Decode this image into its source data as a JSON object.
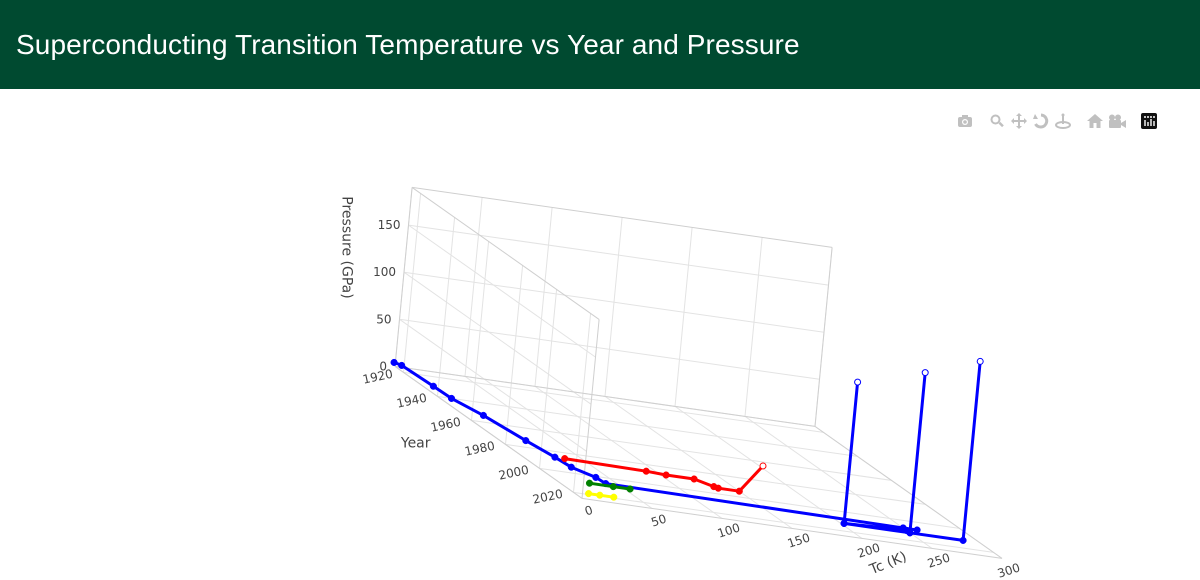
{
  "header": {
    "title": "Superconducting Transition Temperature vs Year and Pressure"
  },
  "modebar": {
    "icons": [
      "camera-icon",
      "zoom-icon",
      "pan-icon",
      "orbit-rotation-icon",
      "turntable-rotation-icon",
      "reset-camera-icon",
      "last-save-camera-icon",
      "plotly-logo-icon"
    ]
  },
  "colors": {
    "header_bg": "#004a30",
    "blue": "#0000ff",
    "red": "#ff0000",
    "green": "#008000",
    "yellow": "#ffff00"
  },
  "chart_data": {
    "type": "scatter3d-lines",
    "title": "",
    "axes": {
      "x": {
        "title": "Tc (K)",
        "range": [
          0,
          300
        ],
        "ticks": [
          "0",
          "50",
          "100",
          "150",
          "200",
          "250",
          "300"
        ]
      },
      "y": {
        "title": "Year",
        "range": [
          1915,
          2025
        ],
        "ticks": [
          "1920",
          "1940",
          "1960",
          "1980",
          "2000",
          "2020"
        ]
      },
      "z": {
        "title": "Pressure (GPa)",
        "range": [
          0,
          190
        ],
        "ticks": [
          "0",
          "50",
          "100",
          "150"
        ]
      }
    },
    "grid": true,
    "legend": "none",
    "series": [
      {
        "color": "#0000ff",
        "points": [
          {
            "x": 4.2,
            "y": 1911,
            "z": 0
          },
          {
            "x": 7.2,
            "y": 1913,
            "z": 0
          },
          {
            "x": 9.2,
            "y": 1930,
            "z": 0
          },
          {
            "x": 10,
            "y": 1940,
            "z": 0
          },
          {
            "x": 17,
            "y": 1953,
            "z": 0
          },
          {
            "x": 23,
            "y": 1973,
            "z": 0
          },
          {
            "x": 28,
            "y": 1986,
            "z": 0
          },
          {
            "x": 30,
            "y": 1994,
            "z": 0
          },
          {
            "x": 39,
            "y": 2001,
            "z": 0
          },
          {
            "x": 40,
            "y": 2006,
            "z": 0
          },
          {
            "x": 250,
            "y": 2008,
            "z": 0
          },
          {
            "x": 260,
            "y": 2008,
            "z": 0
          },
          {
            "x": 250,
            "y": 2008,
            "z": 0
          },
          {
            "x": 250,
            "y": 2010,
            "z": 0
          },
          {
            "x": 203,
            "y": 2012,
            "z": 0
          },
          {
            "x": 203,
            "y": 2012,
            "z": 150
          },
          {
            "x": 203,
            "y": 2012,
            "z": 0
          },
          {
            "x": 250,
            "y": 2012,
            "z": 0
          },
          {
            "x": 250,
            "y": 2012,
            "z": 170
          },
          {
            "x": 250,
            "y": 2012,
            "z": 0
          },
          {
            "x": 288,
            "y": 2012,
            "z": 0
          },
          {
            "x": 288,
            "y": 2012,
            "z": 190
          }
        ]
      },
      {
        "color": "#ff0000",
        "points": [
          {
            "x": 35,
            "y": 1986,
            "z": 0
          },
          {
            "x": 92,
            "y": 1987,
            "z": 0
          },
          {
            "x": 105,
            "y": 1988,
            "z": 0
          },
          {
            "x": 125,
            "y": 1988,
            "z": 0
          },
          {
            "x": 133,
            "y": 1993,
            "z": 0
          },
          {
            "x": 135,
            "y": 1994,
            "z": 0
          },
          {
            "x": 150,
            "y": 1994,
            "z": 0
          },
          {
            "x": 165,
            "y": 1994,
            "z": 30
          }
        ]
      },
      {
        "color": "#008000",
        "points": [
          {
            "x": 26,
            "y": 2008,
            "z": 0
          },
          {
            "x": 43,
            "y": 2008,
            "z": 0
          },
          {
            "x": 55,
            "y": 2008,
            "z": 0
          }
        ]
      },
      {
        "color": "#ffff00",
        "points": [
          {
            "x": 12,
            "y": 2019,
            "z": 0
          },
          {
            "x": 20,
            "y": 2019,
            "z": 0
          },
          {
            "x": 30,
            "y": 2019,
            "z": 0
          }
        ]
      }
    ]
  }
}
